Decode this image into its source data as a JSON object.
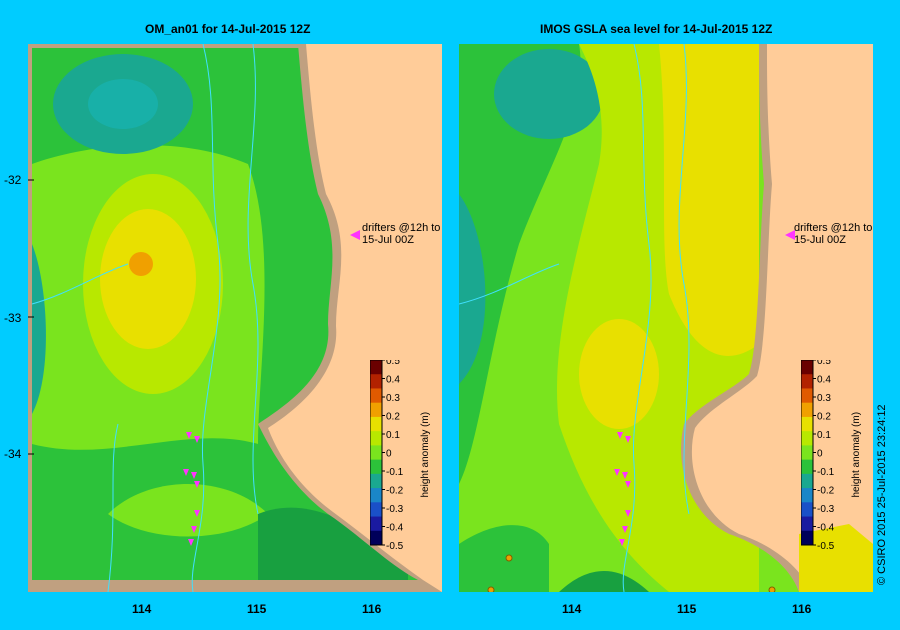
{
  "left_panel": {
    "title": "OM_an01  for 14-Jul-2015 12Z"
  },
  "right_panel": {
    "title": "IMOS GSLA sea level  for 14-Jul-2015 12Z"
  },
  "axes": {
    "y_ticks": [
      "-32",
      "-33",
      "-34"
    ],
    "x_ticks": [
      "114",
      "115",
      "116"
    ]
  },
  "annotation": {
    "line1": "drifters @12h to",
    "line2": "15-Jul 00Z"
  },
  "colorbar": {
    "label": "height anomaly (m)",
    "ticks": [
      "0.5",
      "0.4",
      "0.3",
      "0.2",
      "0.1",
      "0",
      "-0.1",
      "-0.2",
      "-0.3",
      "-0.4",
      "-0.5"
    ],
    "colors": [
      "#6a0000",
      "#b22200",
      "#e05a00",
      "#f0a000",
      "#e8e000",
      "#b8e800",
      "#7ae41e",
      "#2cc23a",
      "#1aa890",
      "#1a86c8",
      "#1a50c8",
      "#1a1aa0",
      "#00005a"
    ]
  },
  "credit": "© CSIRO 2015   25-Jul-2015 23:24:12",
  "colors": {
    "background": "#00ccff",
    "land": "#ffcc99",
    "coast": "#c0a080"
  }
}
